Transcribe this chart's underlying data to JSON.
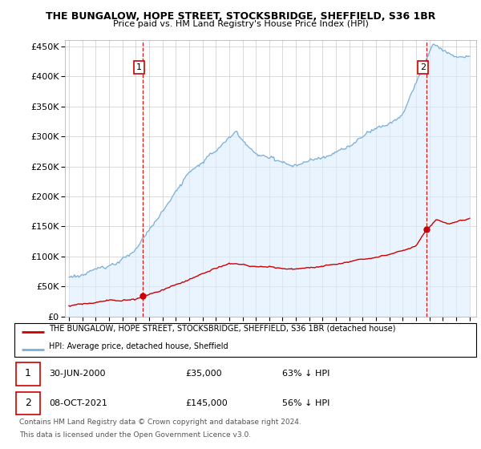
{
  "title": "THE BUNGALOW, HOPE STREET, STOCKSBRIDGE, SHEFFIELD, S36 1BR",
  "subtitle": "Price paid vs. HM Land Registry's House Price Index (HPI)",
  "hpi_color": "#7bafd4",
  "hpi_fill_color": "#ddeeff",
  "price_color": "#cc0000",
  "dashed_color": "#cc0000",
  "marker1_year": 2000.5,
  "marker1_price": 35000,
  "marker2_year": 2021.75,
  "marker2_price": 145000,
  "legend_label1": "THE BUNGALOW, HOPE STREET, STOCKSBRIDGE, SHEFFIELD, S36 1BR (detached house)",
  "legend_label2": "HPI: Average price, detached house, Sheffield",
  "table_row1_date": "30-JUN-2000",
  "table_row1_price": "£35,000",
  "table_row1_hpi": "63% ↓ HPI",
  "table_row2_date": "08-OCT-2021",
  "table_row2_price": "£145,000",
  "table_row2_hpi": "56% ↓ HPI",
  "footnote1": "Contains HM Land Registry data © Crown copyright and database right 2024.",
  "footnote2": "This data is licensed under the Open Government Licence v3.0.",
  "ylim_max": 460000,
  "xlim_min": 1994.7,
  "xlim_max": 2025.5
}
